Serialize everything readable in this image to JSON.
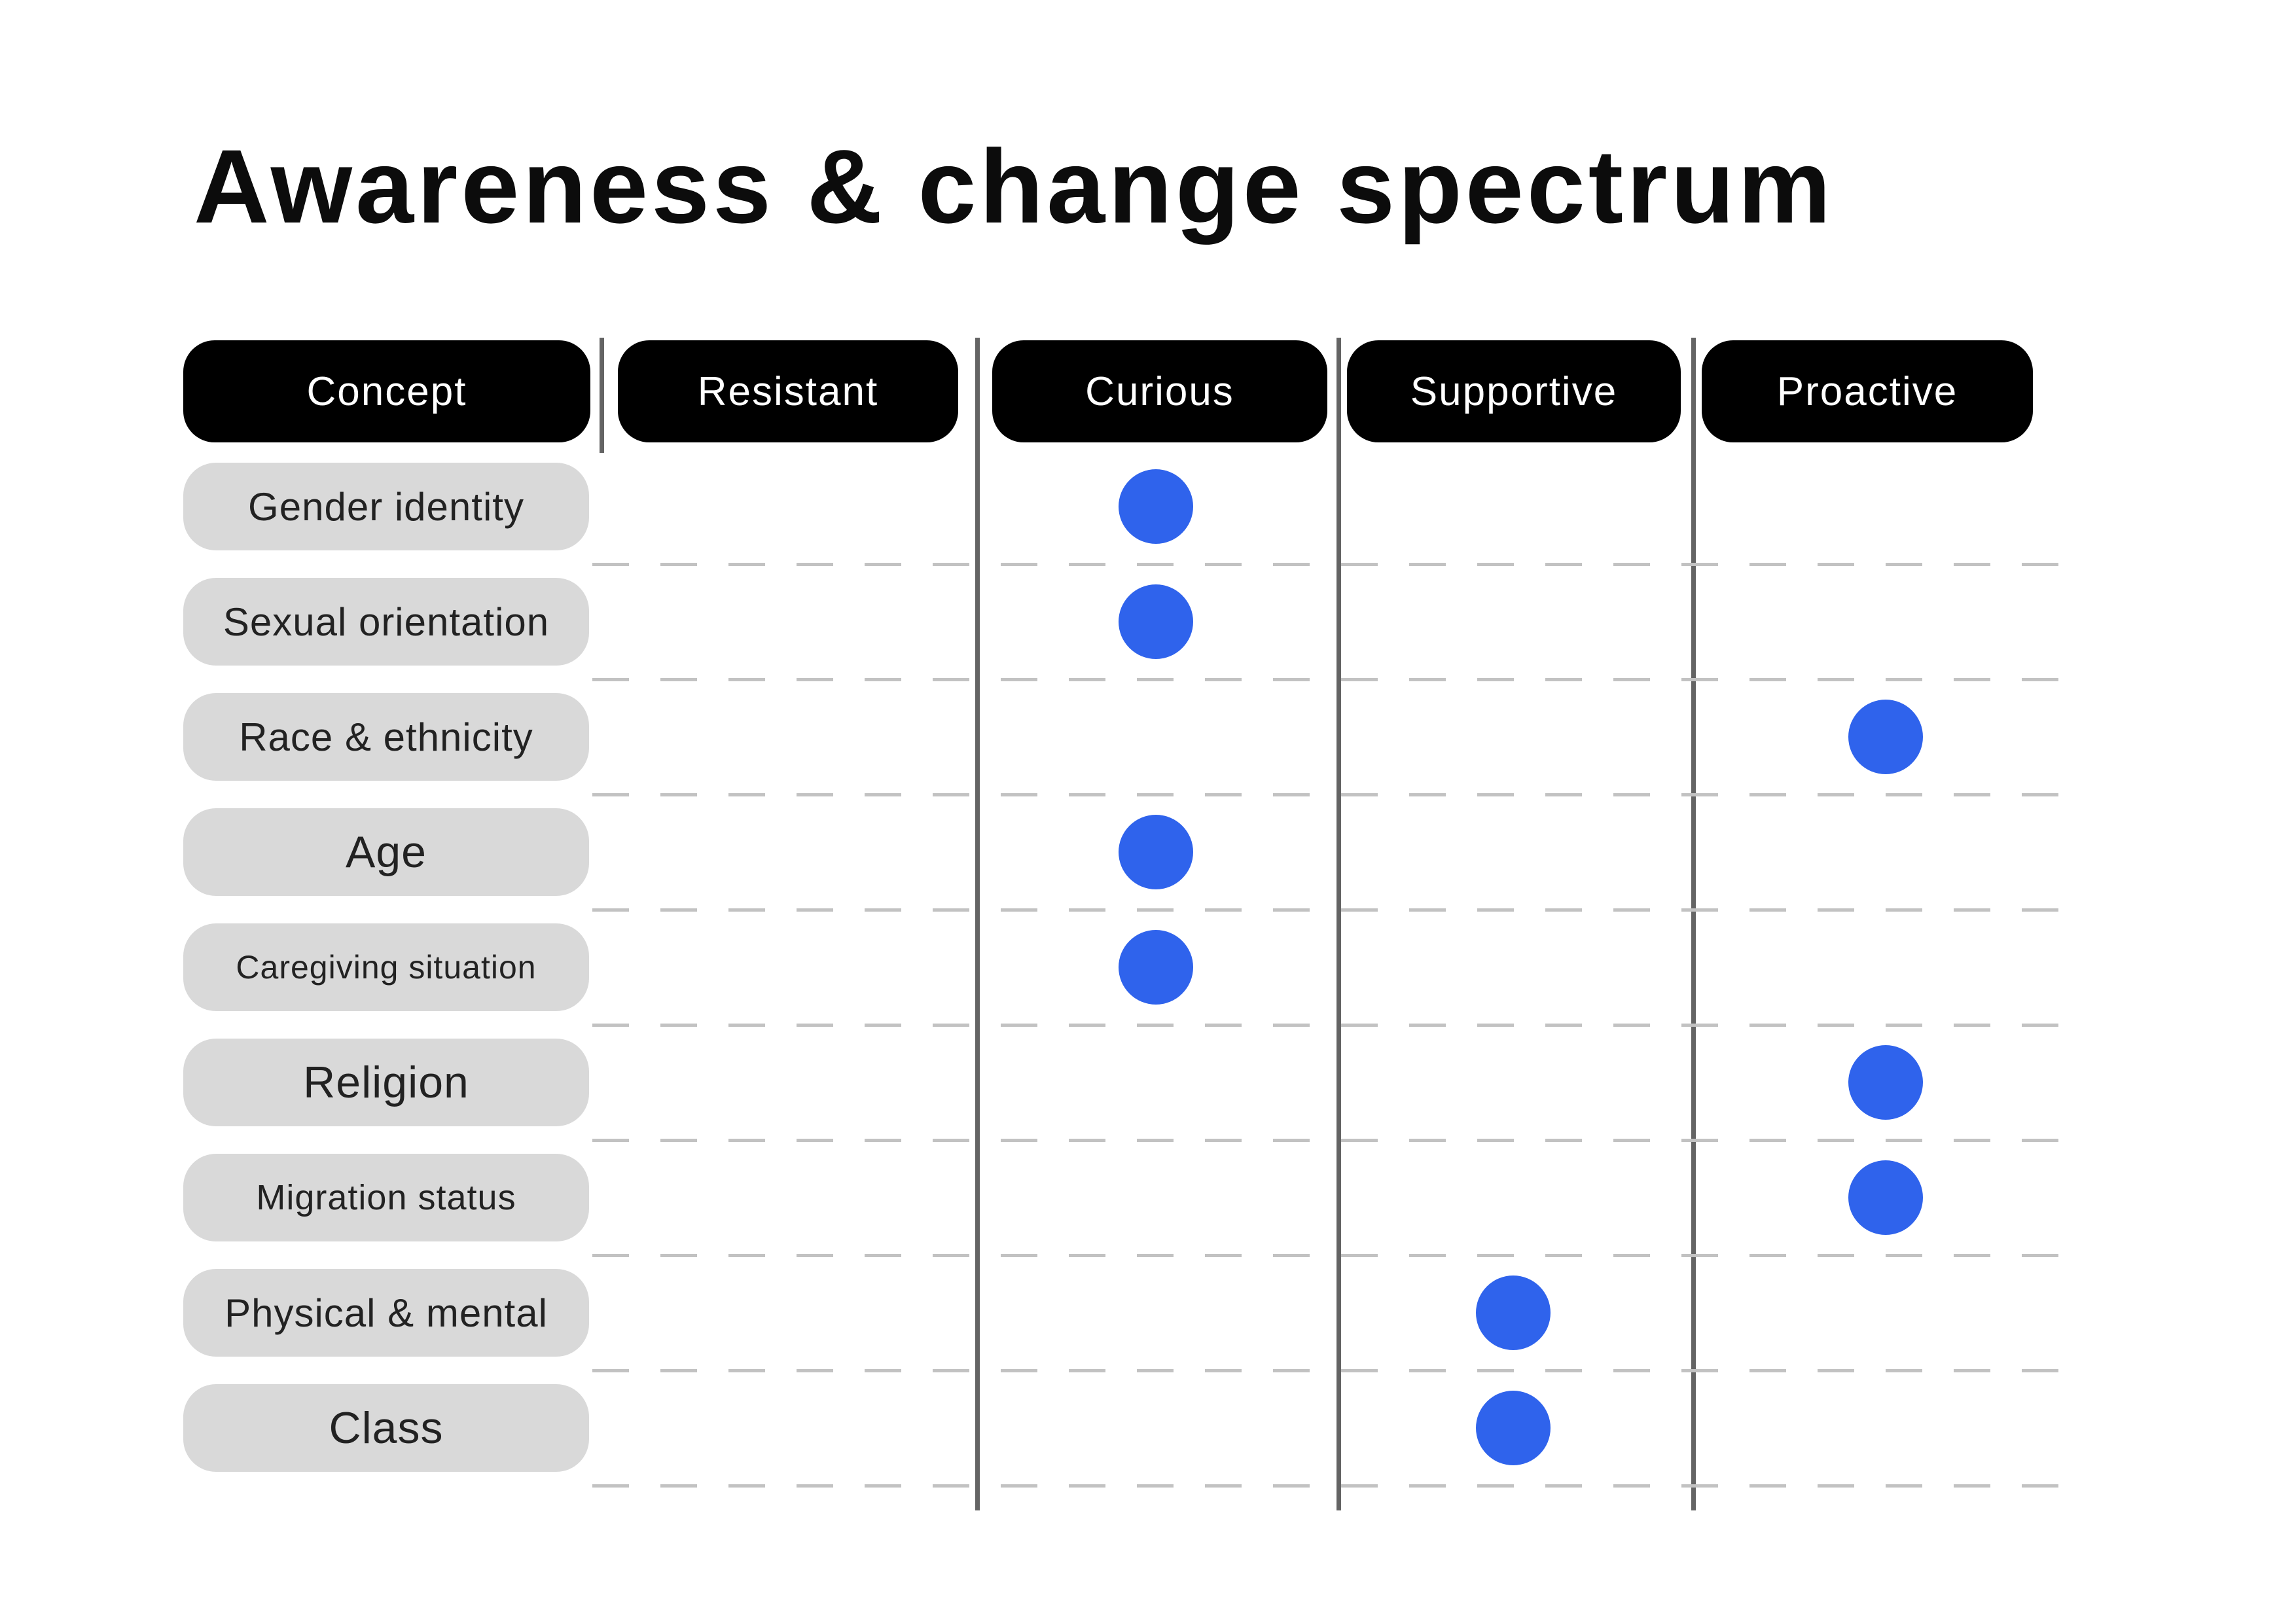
{
  "title": "Awareness & change spectrum",
  "colors": {
    "background": "#ffffff",
    "title_text": "#0c0c0c",
    "header_pill": "#000000",
    "header_text": "#ffffff",
    "row_pill": "#d9d9d9",
    "row_text": "#222222",
    "dot": "#2f63ec",
    "column_divider": "#646464",
    "dashed_separator": "#c2c2c2"
  },
  "chart_data": {
    "type": "table",
    "title": "Awareness & change spectrum",
    "columns": [
      "Concept",
      "Resistant",
      "Curious",
      "Supportive",
      "Proactive"
    ],
    "levels": [
      "Resistant",
      "Curious",
      "Supportive",
      "Proactive"
    ],
    "rows": [
      {
        "concept": "Gender identity",
        "level": "Curious"
      },
      {
        "concept": "Sexual orientation",
        "level": "Curious"
      },
      {
        "concept": "Race & ethnicity",
        "level": "Proactive"
      },
      {
        "concept": "Age",
        "level": "Curious"
      },
      {
        "concept": "Caregiving situation",
        "level": "Curious"
      },
      {
        "concept": "Religion",
        "level": "Proactive"
      },
      {
        "concept": "Migration status",
        "level": "Proactive"
      },
      {
        "concept": "Physical & mental",
        "level": "Supportive"
      },
      {
        "concept": "Class",
        "level": "Supportive"
      }
    ],
    "marker": "filled circle",
    "legend_position": "none",
    "grid": "dashed horizontal row separators, solid vertical column dividers"
  }
}
